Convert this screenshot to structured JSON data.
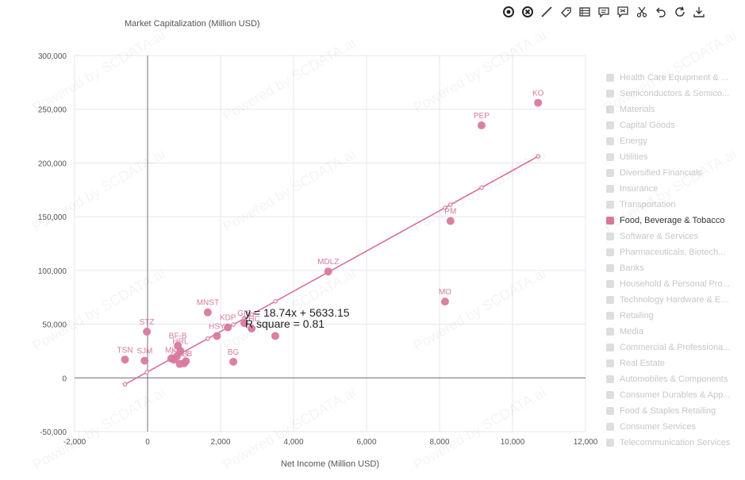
{
  "toolbar": [
    {
      "name": "pan-icon"
    },
    {
      "name": "clear-icon"
    },
    {
      "name": "line-draw-icon"
    },
    {
      "name": "tag-icon"
    },
    {
      "name": "data-view-icon"
    },
    {
      "name": "comment-icon"
    },
    {
      "name": "annotate-icon"
    },
    {
      "name": "cut-icon"
    },
    {
      "name": "undo-icon"
    },
    {
      "name": "refresh-icon"
    },
    {
      "name": "download-icon"
    }
  ],
  "watermark": "Powered by SCDATA.ai",
  "legend": [
    {
      "label": "Health Care Equipment & ...",
      "active": false
    },
    {
      "label": "Semiconductors & Semico...",
      "active": false
    },
    {
      "label": "Materials",
      "active": false
    },
    {
      "label": "Capital Goods",
      "active": false
    },
    {
      "label": "Energy",
      "active": false
    },
    {
      "label": "Utilities",
      "active": false
    },
    {
      "label": "Diversified Financials",
      "active": false
    },
    {
      "label": "Insurance",
      "active": false
    },
    {
      "label": "Transportation",
      "active": false
    },
    {
      "label": "Food, Beverage & Tobacco",
      "active": true
    },
    {
      "label": "Software & Services",
      "active": false
    },
    {
      "label": "Pharmaceuticals, Biotech...",
      "active": false
    },
    {
      "label": "Banks",
      "active": false
    },
    {
      "label": "Household & Personal Pro...",
      "active": false
    },
    {
      "label": "Technology Hardware & Eq...",
      "active": false
    },
    {
      "label": "Retailing",
      "active": false
    },
    {
      "label": "Media",
      "active": false
    },
    {
      "label": "Commercial & Professiona...",
      "active": false
    },
    {
      "label": "Real Estate",
      "active": false
    },
    {
      "label": "Automobiles & Components",
      "active": false
    },
    {
      "label": "Consumer Durables & App...",
      "active": false
    },
    {
      "label": "Food & Staples Retailing",
      "active": false
    },
    {
      "label": "Consumer Services",
      "active": false
    },
    {
      "label": "Telecommunication Services",
      "active": false
    }
  ],
  "colors": {
    "series": "#d87a9c",
    "line": "#d8709a",
    "axis": "#6e7079",
    "grid": "#e6e6f0",
    "legend_inactive": "#dedede"
  },
  "chart_data": {
    "type": "scatter",
    "xlabel": "Net Income (Million USD)",
    "ylabel": "Market Capitalization (Million USD)",
    "xlim": [
      -2000,
      12000
    ],
    "ylim": [
      -50000,
      300000
    ],
    "xticks": [
      "-2,000",
      "0",
      "2,000",
      "4,000",
      "6,000",
      "8,000",
      "10,000",
      "12,000"
    ],
    "yticks": [
      "-50,000",
      "0",
      "50,000",
      "100,000",
      "150,000",
      "200,000",
      "250,000",
      "300,000"
    ],
    "grid": true,
    "legend_position": "right",
    "series": [
      {
        "name": "Food, Beverage & Tobacco",
        "points": [
          {
            "label": "KO",
            "x": 10700,
            "y": 256000
          },
          {
            "label": "PEP",
            "x": 9150,
            "y": 235000
          },
          {
            "label": "PM",
            "x": 8300,
            "y": 146000
          },
          {
            "label": "MDLZ",
            "x": 4950,
            "y": 99000
          },
          {
            "label": "MO",
            "x": 8150,
            "y": 71000
          },
          {
            "label": "MNST",
            "x": 1650,
            "y": 61000
          },
          {
            "label": "STZ",
            "x": -20,
            "y": 43000
          },
          {
            "label": "KDP",
            "x": 2200,
            "y": 47000
          },
          {
            "label": "GIS",
            "x": 2650,
            "y": 51000
          },
          {
            "label": "KHC",
            "x": 2850,
            "y": 46000
          },
          {
            "label": "HSY",
            "x": 1900,
            "y": 39000
          },
          {
            "label": "",
            "x": 3500,
            "y": 39000
          },
          {
            "label": "BF-B",
            "x": 830,
            "y": 30000
          },
          {
            "label": "TSN",
            "x": -620,
            "y": 17000
          },
          {
            "label": "SJM",
            "x": -80,
            "y": 16000
          },
          {
            "label": "BG",
            "x": 2350,
            "y": 15000
          },
          {
            "label": "MKC",
            "x": 720,
            "y": 17000
          },
          {
            "label": "HRL",
            "x": 900,
            "y": 25000
          },
          {
            "label": "CAG",
            "x": 880,
            "y": 13000
          },
          {
            "label": "CPB",
            "x": 1000,
            "y": 13500
          },
          {
            "label": "",
            "x": 1050,
            "y": 15500
          },
          {
            "label": "",
            "x": 650,
            "y": 18000
          },
          {
            "label": "",
            "x": 800,
            "y": 20000
          }
        ]
      }
    ],
    "trendline": {
      "equation": "y = 18.74x + 5633.15",
      "r_square": "R square = 0.81",
      "slope": 18.74,
      "intercept": 5633.15,
      "x": [
        -620,
        -20,
        830,
        1650,
        2200,
        2350,
        2650,
        2850,
        3500,
        4950,
        8150,
        8300,
        9150,
        10700
      ]
    }
  }
}
